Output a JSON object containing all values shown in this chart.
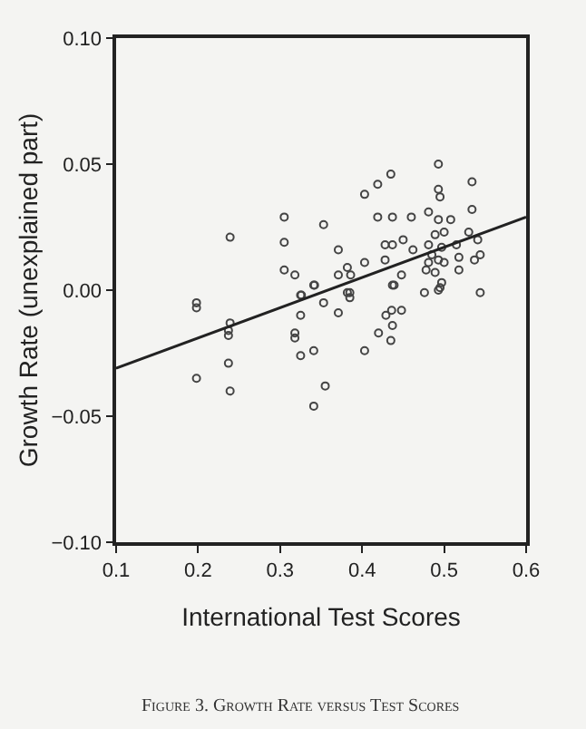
{
  "chart_data": {
    "type": "scatter",
    "xlabel": "International Test Scores",
    "ylabel": "Growth Rate (unexplained part)",
    "annotations": [
      "Figure 3. Growth Rate versus Test Scores"
    ],
    "xlim": [
      0.1,
      0.6
    ],
    "xticks": [
      0.1,
      0.2,
      0.3,
      0.4,
      0.5,
      0.6
    ],
    "ylim": [
      -0.1,
      0.1
    ],
    "yticks": [
      {
        "value": 0.1,
        "label": "0.10"
      },
      {
        "value": 0.05,
        "label": "0.05"
      },
      {
        "value": 0,
        "label": "0.00"
      },
      {
        "value": -0.05,
        "label": "−0.05"
      },
      {
        "value": -0.1,
        "label": "−0.10"
      }
    ],
    "grid": false,
    "legend": false,
    "marker": "circle",
    "series": [
      {
        "color": "#444444",
        "x": [
          0.239,
          0.305,
          0.305,
          0.305,
          0.318,
          0.353,
          0.371,
          0.371,
          0.382,
          0.386,
          0.342,
          0.326,
          0.385,
          0.403,
          0.419,
          0.435,
          0.419,
          0.437,
          0.46,
          0.403,
          0.428,
          0.437,
          0.45,
          0.462,
          0.428,
          0.448,
          0.437,
          0.493,
          0.493,
          0.495,
          0.534,
          0.534,
          0.481,
          0.493,
          0.508,
          0.5,
          0.489,
          0.53,
          0.541,
          0.481,
          0.497,
          0.515,
          0.485,
          0.493,
          0.481,
          0.5,
          0.518,
          0.544,
          0.537,
          0.518,
          0.489,
          0.478,
          0.495,
          0.476,
          0.198,
          0.198,
          0.239,
          0.237,
          0.237,
          0.237,
          0.198,
          0.239,
          0.325,
          0.341,
          0.353,
          0.325,
          0.318,
          0.318,
          0.325,
          0.341,
          0.355,
          0.341,
          0.371,
          0.382,
          0.385,
          0.439,
          0.448,
          0.429,
          0.436,
          0.437,
          0.42,
          0.435,
          0.403,
          0.493,
          0.497,
          0.544
        ],
        "values": [
          0.021,
          0.029,
          0.019,
          0.008,
          0.006,
          0.026,
          0.016,
          0.006,
          0.009,
          0.006,
          0.002,
          -0.002,
          -0.001,
          0.038,
          0.042,
          0.046,
          0.029,
          0.029,
          0.029,
          0.011,
          0.018,
          0.018,
          0.02,
          0.016,
          0.012,
          0.006,
          0.002,
          0.05,
          0.04,
          0.037,
          0.043,
          0.032,
          0.031,
          0.028,
          0.028,
          0.023,
          0.022,
          0.023,
          0.02,
          0.018,
          0.017,
          0.018,
          0.014,
          0.012,
          0.011,
          0.011,
          0.013,
          0.014,
          0.012,
          0.008,
          0.007,
          0.008,
          0.001,
          -0.001,
          -0.005,
          -0.007,
          -0.013,
          -0.016,
          -0.018,
          -0.029,
          -0.035,
          -0.04,
          -0.002,
          0.002,
          -0.005,
          -0.01,
          -0.017,
          -0.019,
          -0.026,
          -0.024,
          -0.038,
          -0.046,
          -0.009,
          -0.001,
          -0.003,
          0.002,
          -0.008,
          -0.01,
          -0.008,
          -0.014,
          -0.017,
          -0.02,
          -0.024,
          0.0,
          0.003,
          -0.001
        ]
      },
      {
        "type": "line",
        "color": "#222222",
        "marker": "none",
        "line_style": "solid",
        "x": [
          0.1,
          0.6
        ],
        "values": [
          -0.031,
          0.029
        ]
      }
    ]
  }
}
